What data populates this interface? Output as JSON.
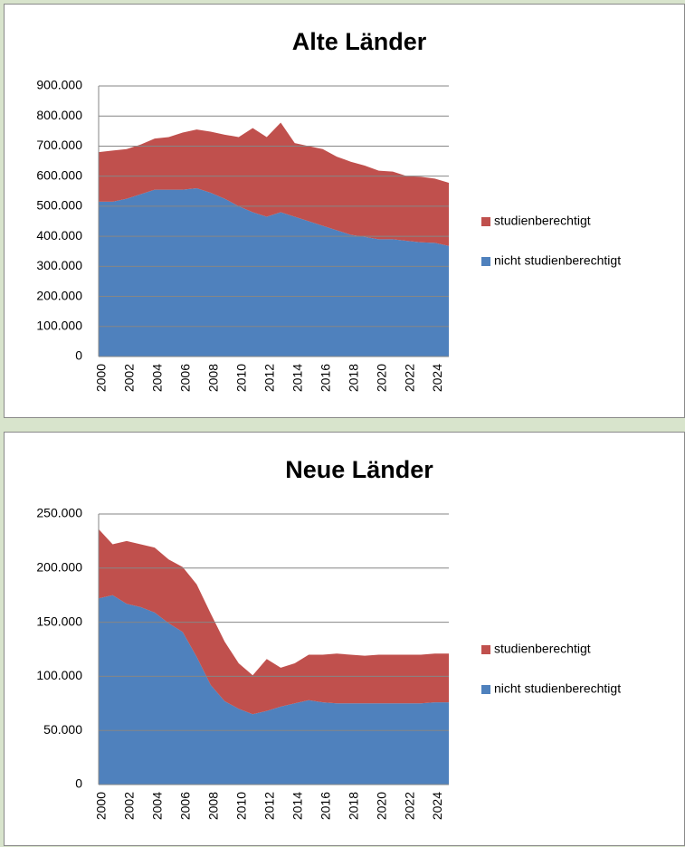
{
  "chart_data": [
    {
      "type": "area",
      "stacked": true,
      "title": "Alte Länder",
      "categories": [
        "2000",
        null,
        "2002",
        null,
        "2004",
        null,
        "2006",
        null,
        "2008",
        null,
        "2010",
        null,
        "2012",
        null,
        "2014",
        null,
        "2016",
        null,
        "2018",
        null,
        "2020",
        null,
        "2022",
        null,
        "2024",
        null
      ],
      "series": [
        {
          "name": "studienberechtigt",
          "color": "#c0504d",
          "values": [
            165000,
            170000,
            165000,
            165000,
            170000,
            175000,
            190000,
            195000,
            203000,
            213000,
            230000,
            280000,
            265000,
            298000,
            245000,
            250000,
            255000,
            245000,
            243000,
            237000,
            228000,
            225000,
            215000,
            218000,
            214000,
            210000
          ]
        },
        {
          "name": "nicht studienberechtigt",
          "color": "#4f81bd",
          "values": [
            515000,
            515000,
            525000,
            540000,
            555000,
            555000,
            555000,
            560000,
            545000,
            525000,
            500000,
            480000,
            465000,
            480000,
            465000,
            450000,
            435000,
            420000,
            405000,
            398000,
            390000,
            390000,
            385000,
            380000,
            378000,
            368000
          ]
        }
      ],
      "ylim": [
        0,
        900000
      ],
      "yticks": [
        0,
        {
          "value": 100000,
          "label": "100.000"
        },
        {
          "value": 200000,
          "label": "200.000"
        },
        {
          "value": 300000,
          "label": "300.000"
        },
        {
          "value": 400000,
          "label": "400.000"
        },
        {
          "value": 500000,
          "label": "500.000"
        },
        {
          "value": 600000,
          "label": "600.000"
        },
        {
          "value": 700000,
          "label": "700.000"
        },
        {
          "value": 800000,
          "label": "800.000"
        },
        {
          "value": 900000,
          "label": "900.000"
        }
      ],
      "grid": true,
      "legend": "right"
    },
    {
      "type": "area",
      "stacked": true,
      "title": "Neue Länder",
      "categories": [
        "2000",
        null,
        "2002",
        null,
        "2004",
        null,
        "2006",
        null,
        "2008",
        null,
        "2010",
        null,
        "2012",
        null,
        "2014",
        null,
        "2016",
        null,
        "2018",
        null,
        "2020",
        null,
        "2022",
        null,
        "2024",
        null
      ],
      "series": [
        {
          "name": "studienberechtigt",
          "color": "#c0504d",
          "values": [
            64000,
            47000,
            58000,
            58000,
            60000,
            59000,
            60000,
            67000,
            66000,
            55000,
            42000,
            36000,
            48000,
            36000,
            37000,
            42000,
            44000,
            46000,
            45000,
            44000,
            45000,
            45000,
            45000,
            45000,
            45000,
            45000
          ]
        },
        {
          "name": "nicht studienberechtigt",
          "color": "#4f81bd",
          "values": [
            172000,
            175000,
            167000,
            164000,
            159000,
            149000,
            141000,
            118000,
            92000,
            77000,
            70000,
            65000,
            68000,
            72000,
            75000,
            78000,
            76000,
            75000,
            75000,
            75000,
            75000,
            75000,
            75000,
            75000,
            76000,
            76000
          ]
        }
      ],
      "ylim": [
        0,
        250000
      ],
      "yticks": [
        0,
        {
          "value": 50000,
          "label": "50.000"
        },
        {
          "value": 100000,
          "label": "100.000"
        },
        {
          "value": 150000,
          "label": "150.000"
        },
        {
          "value": 200000,
          "label": "200.000"
        },
        {
          "value": 250000,
          "label": "250.000"
        }
      ],
      "grid": true,
      "legend": "right"
    }
  ]
}
